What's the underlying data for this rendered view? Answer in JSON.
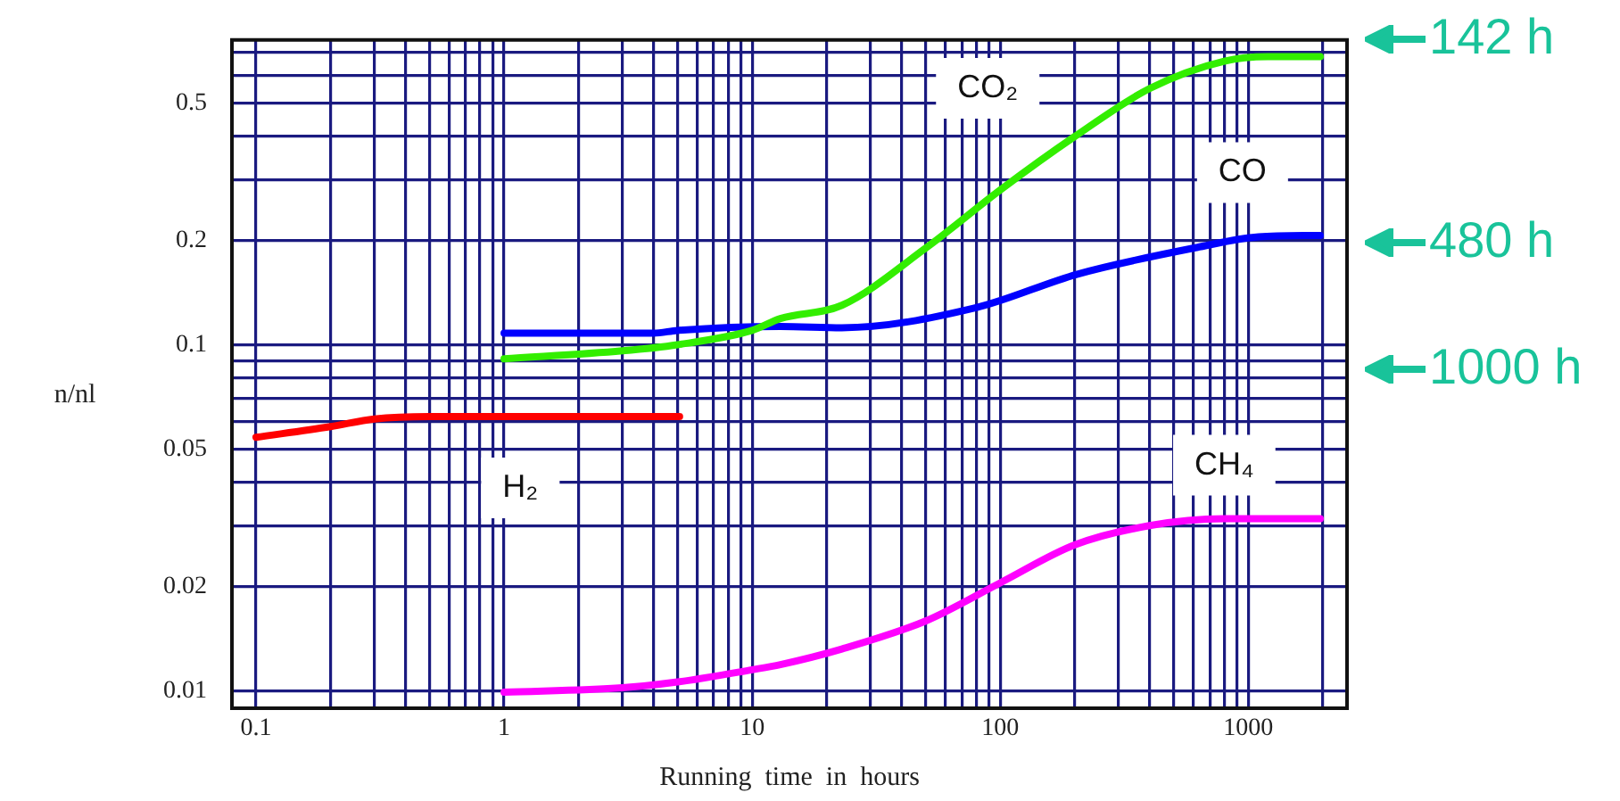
{
  "chart_data": {
    "type": "line",
    "xlabel": "Running  time  in  hours",
    "ylabel": "n/nl",
    "log": "xy",
    "grid": true,
    "marker": "none",
    "line_style": "solid",
    "xlim": [
      0.08,
      2500
    ],
    "ylim": [
      0.0089,
      0.76
    ],
    "xticks": [
      0.1,
      {
        "value": 0.2,
        "label": null
      },
      {
        "value": 0.3,
        "label": null
      },
      {
        "value": 0.4,
        "label": null
      },
      {
        "value": 0.5,
        "label": null
      },
      {
        "value": 0.6,
        "label": null
      },
      {
        "value": 0.7,
        "label": null
      },
      {
        "value": 0.8,
        "label": null
      },
      {
        "value": 0.9,
        "label": null
      },
      1,
      {
        "value": 2,
        "label": null
      },
      {
        "value": 3,
        "label": null
      },
      {
        "value": 4,
        "label": null
      },
      {
        "value": 5,
        "label": null
      },
      {
        "value": 6,
        "label": null
      },
      {
        "value": 7,
        "label": null
      },
      {
        "value": 8,
        "label": null
      },
      {
        "value": 9,
        "label": null
      },
      10,
      {
        "value": 20,
        "label": null
      },
      {
        "value": 30,
        "label": null
      },
      {
        "value": 40,
        "label": null
      },
      {
        "value": 50,
        "label": null
      },
      {
        "value": 60,
        "label": null
      },
      {
        "value": 70,
        "label": null
      },
      {
        "value": 80,
        "label": null
      },
      {
        "value": 90,
        "label": null
      },
      100,
      {
        "value": 200,
        "label": null
      },
      {
        "value": 300,
        "label": null
      },
      {
        "value": 400,
        "label": null
      },
      {
        "value": 500,
        "label": null
      },
      {
        "value": 600,
        "label": null
      },
      {
        "value": 700,
        "label": null
      },
      {
        "value": 800,
        "label": null
      },
      {
        "value": 900,
        "label": null
      },
      1000,
      {
        "value": 2000,
        "label": null
      }
    ],
    "yticks": [
      0.01,
      0.02,
      {
        "value": 0.03,
        "label": null
      },
      {
        "value": 0.04,
        "label": null
      },
      0.05,
      {
        "value": 0.06,
        "label": null
      },
      {
        "value": 0.07,
        "label": null
      },
      {
        "value": 0.08,
        "label": null
      },
      {
        "value": 0.09,
        "label": null
      },
      0.1,
      0.2,
      {
        "value": 0.3,
        "label": null
      },
      {
        "value": 0.4,
        "label": null
      },
      0.5,
      {
        "value": 0.6,
        "label": null
      },
      {
        "value": 0.7,
        "label": null
      }
    ],
    "series": [
      {
        "name": "H₂",
        "color": "#ff0000",
        "x": [
          0.1,
          0.2,
          0.3,
          0.5,
          5.1
        ],
        "values": [
          0.054,
          0.058,
          0.061,
          0.062,
          0.062
        ]
      },
      {
        "name": "CO₂",
        "color": "#33ee00",
        "x": [
          1,
          3,
          5,
          10,
          13,
          23,
          50,
          100,
          200,
          400,
          800,
          1200,
          1950
        ],
        "values": [
          0.091,
          0.096,
          0.1,
          0.11,
          0.119,
          0.13,
          0.19,
          0.28,
          0.4,
          0.55,
          0.66,
          0.68,
          0.68
        ]
      },
      {
        "name": "CO",
        "color": "#0000ff",
        "x": [
          1,
          4,
          5,
          13,
          23,
          80,
          205,
          620,
          1100,
          1950
        ],
        "values": [
          0.108,
          0.108,
          0.11,
          0.113,
          0.112,
          0.128,
          0.16,
          0.191,
          0.205,
          0.207
        ]
      },
      {
        "name": "CH₄",
        "color": "#ff00ff",
        "x": [
          1,
          3,
          5,
          10,
          13,
          23,
          50,
          100,
          200,
          400,
          800,
          1950
        ],
        "values": [
          0.0099,
          0.0102,
          0.0106,
          0.0115,
          0.0119,
          0.0132,
          0.0159,
          0.0205,
          0.0264,
          0.03,
          0.0314,
          0.0314
        ]
      }
    ],
    "annotations": [
      "142 h",
      "480 h",
      "1000 h"
    ]
  }
}
